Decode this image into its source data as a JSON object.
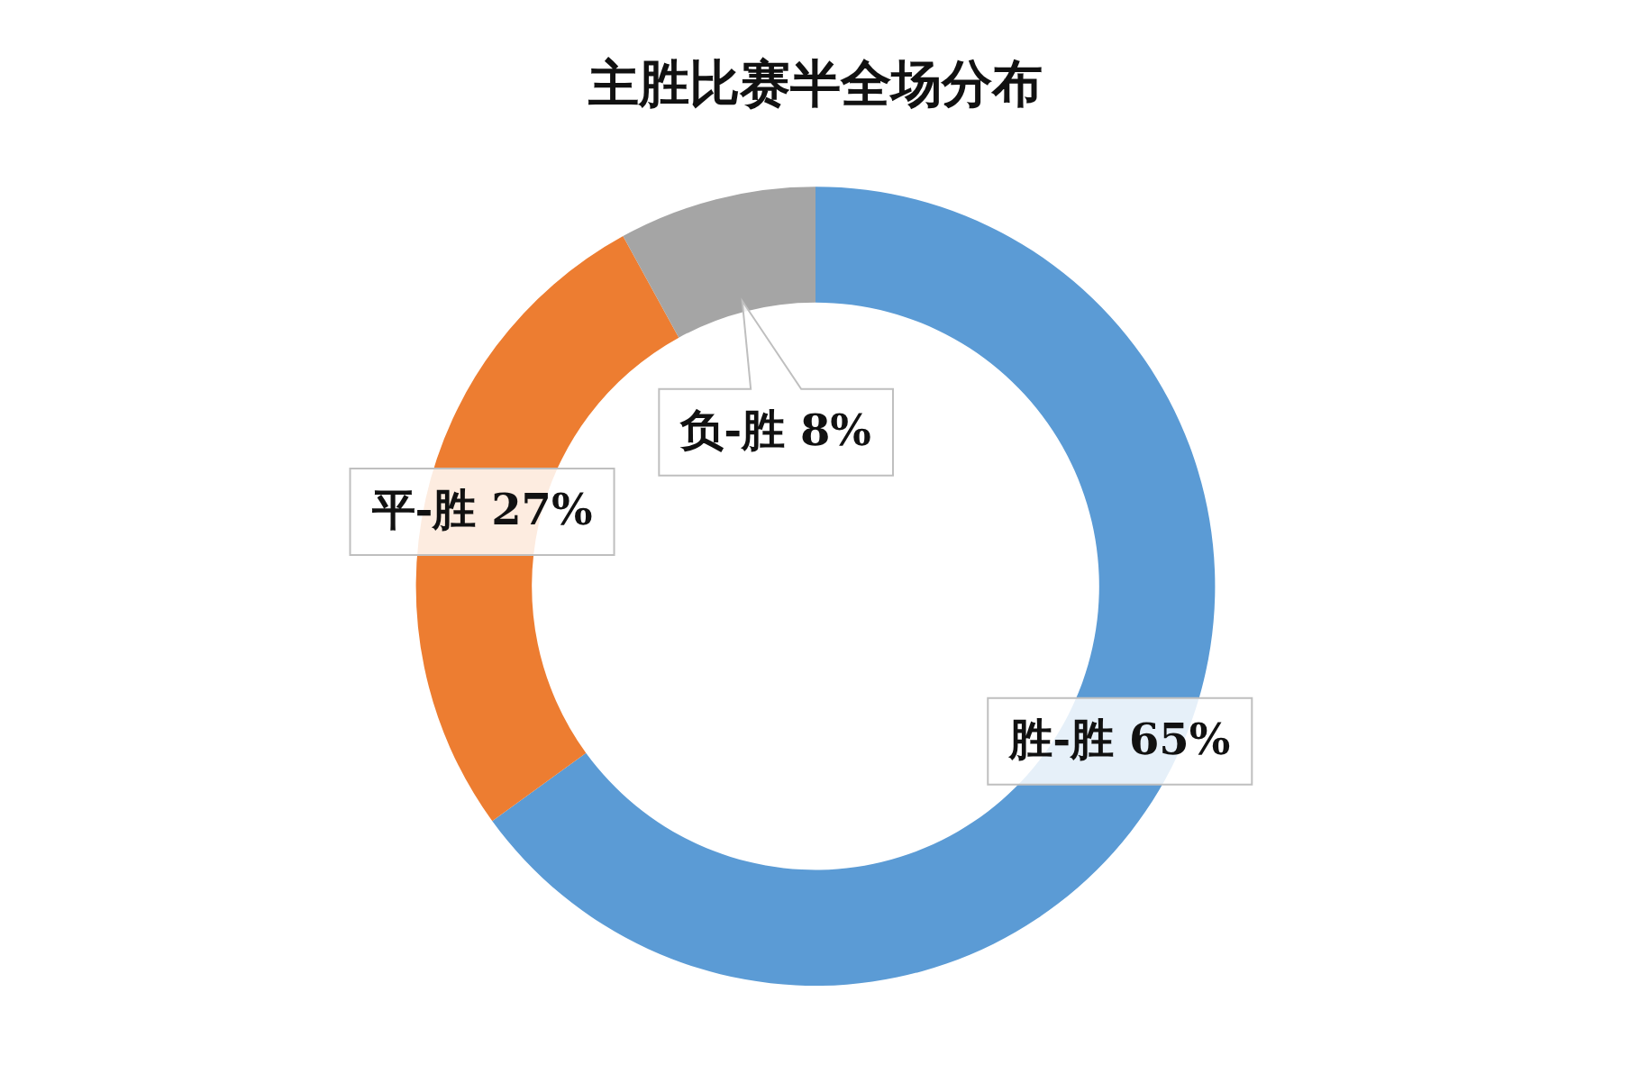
{
  "chart_data": {
    "type": "donut",
    "title": "主胜比赛半全场分布",
    "categories": [
      "胜-胜",
      "平-胜",
      "负-胜"
    ],
    "values": [
      65,
      27,
      8
    ],
    "colors": [
      "#5b9bd5",
      "#ed7d31",
      "#a5a5a5"
    ],
    "value_labels": [
      "65%",
      "27%",
      "8%"
    ],
    "legend": false
  }
}
